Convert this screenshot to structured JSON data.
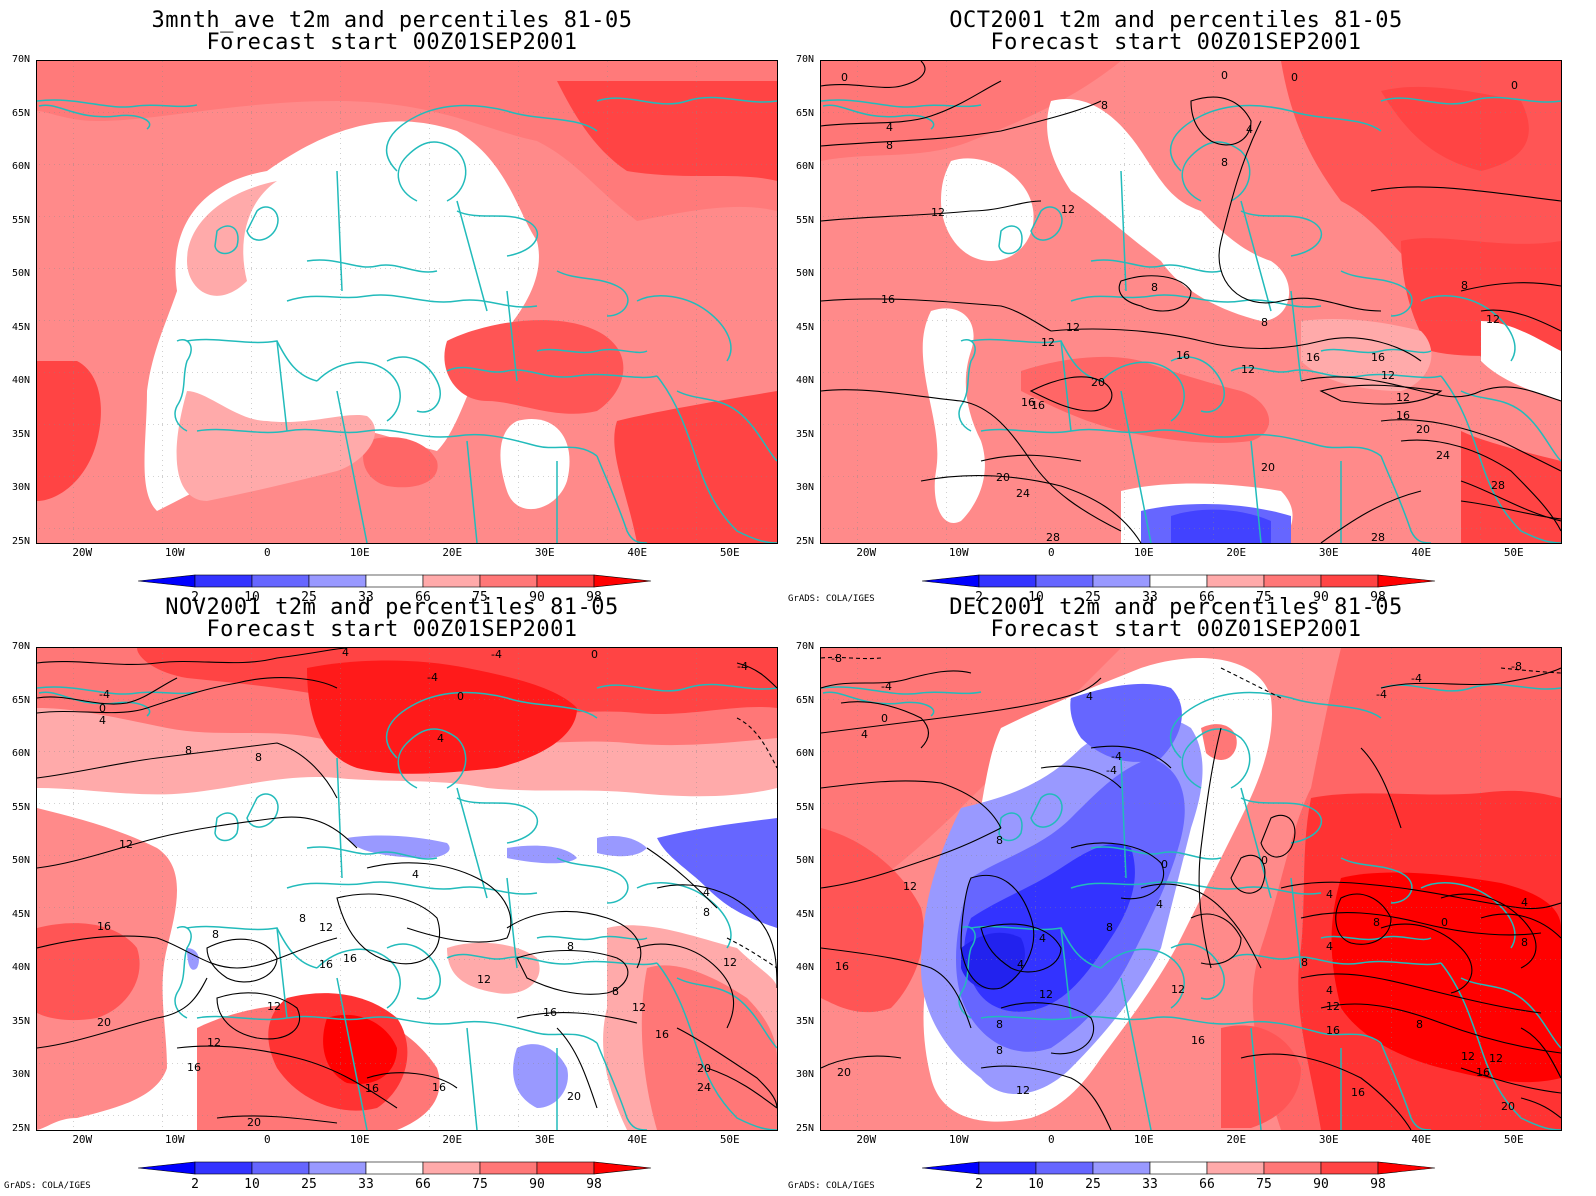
{
  "panels": [
    {
      "title_line1": "3mnth_ave t2m and percentiles 81-05",
      "title_line2": "Forecast start 00Z01SEP2001",
      "credit": ""
    },
    {
      "title_line1": "OCT2001 t2m and percentiles 81-05",
      "title_line2": "Forecast start 00Z01SEP2001",
      "credit": "GrADS: COLA/IGES"
    },
    {
      "title_line1": "NOV2001 t2m and percentiles 81-05",
      "title_line2": "Forecast start 00Z01SEP2001",
      "credit": "GrADS: COLA/IGES"
    },
    {
      "title_line1": "DEC2001 t2m and percentiles 81-05",
      "title_line2": "Forecast start 00Z01SEP2001",
      "credit": "GrADS: COLA/IGES"
    }
  ],
  "latitude_labels": [
    "70N",
    "65N",
    "60N",
    "55N",
    "50N",
    "45N",
    "40N",
    "35N",
    "30N",
    "25N"
  ],
  "longitude_labels": [
    "20W",
    "10W",
    "0",
    "10E",
    "20E",
    "30E",
    "40E",
    "50E"
  ],
  "colorbar": {
    "labels": [
      "2",
      "10",
      "25",
      "33",
      "66",
      "75",
      "90",
      "98"
    ],
    "colors": [
      "#0000ff",
      "#3333ff",
      "#6666ff",
      "#9999ff",
      "#ffffff",
      "#ffaaaa",
      "#ff7777",
      "#ff4444",
      "#ff0000"
    ]
  },
  "colors": {
    "coastline": "#22bbbb",
    "contour": "#000000",
    "grid": "#999999"
  },
  "contour_labels": {
    "oct": [
      "0",
      "0",
      "0",
      "4",
      "8",
      "8",
      "8",
      "12",
      "12",
      "16",
      "16",
      "12",
      "12",
      "16",
      "20",
      "16",
      "20",
      "24",
      "28",
      "8",
      "12",
      "16",
      "16",
      "12",
      "12",
      "16",
      "20",
      "24",
      "28",
      "28",
      "20",
      "8",
      "12",
      "4",
      "8",
      "0"
    ],
    "nov": [
      "-4",
      "0",
      "4",
      "8",
      "8",
      "-4",
      "0",
      "4",
      "12",
      "16",
      "20",
      "16",
      "12",
      "8",
      "12",
      "16",
      "12",
      "16",
      "16",
      "20",
      "16",
      "4",
      "8",
      "12",
      "8",
      "16",
      "20",
      "8",
      "12",
      "4",
      "8",
      "12",
      "16",
      "20",
      "24",
      "-4",
      "-4",
      "4",
      "0"
    ],
    "dec": [
      "-4",
      "0",
      "4",
      "-8",
      "4",
      "-4",
      "-4",
      "8",
      "12",
      "16",
      "20",
      "0",
      "4",
      "8",
      "4",
      "4",
      "12",
      "8",
      "8",
      "12",
      "16",
      "12",
      "0",
      "4",
      "8",
      "4",
      "8",
      "0",
      "4",
      "8",
      "4",
      "12",
      "16",
      "16",
      "20",
      "8",
      "12",
      "-4",
      "-4",
      "-8",
      "16",
      "12"
    ]
  }
}
